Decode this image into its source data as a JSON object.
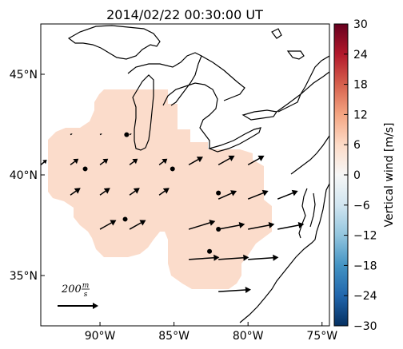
{
  "chart_data": {
    "type": "map",
    "title": "2014/02/22 00:30:00 UT",
    "xlim": [
      -94,
      -74.5
    ],
    "ylim": [
      32.5,
      47.5
    ],
    "x_ticks": [
      -90,
      -85,
      -80,
      -75
    ],
    "x_tick_labels": [
      "90°W",
      "85°W",
      "80°W",
      "75°W"
    ],
    "y_ticks": [
      35,
      40,
      45
    ],
    "y_tick_labels": [
      "35°N",
      "40°N",
      "45°N"
    ],
    "colorbar": {
      "label": "Vertical wind [m/s]",
      "min": -30,
      "max": 30,
      "colormap": "RdBu_r",
      "ticks": [
        30,
        24,
        18,
        12,
        6,
        0,
        -6,
        -12,
        -18,
        -24,
        -30
      ],
      "tick_labels": [
        "30",
        "24",
        "18",
        "12",
        "6",
        "0",
        "−6",
        "−12",
        "−18",
        "−24",
        "−30"
      ]
    },
    "coverage_color": "#fbdccb",
    "coverage_value_approx": 5,
    "scale_arrow": {
      "label": "200",
      "unit_num": "m",
      "unit_den": "s",
      "speed": 200
    },
    "station_sites": [
      {
        "lon": -88.2,
        "lat": 42.0
      },
      {
        "lon": -91.0,
        "lat": 40.3
      },
      {
        "lon": -85.1,
        "lat": 40.3
      },
      {
        "lon": -82.0,
        "lat": 39.1
      },
      {
        "lon": -88.3,
        "lat": 37.8
      },
      {
        "lon": -82.0,
        "lat": 37.3
      },
      {
        "lon": -82.6,
        "lat": 36.2
      }
    ],
    "wind_vectors": [
      {
        "lon": -92.0,
        "lat": 42.0,
        "u": 10,
        "v": 5
      },
      {
        "lon": -90.0,
        "lat": 42.0,
        "u": 10,
        "v": 5
      },
      {
        "lon": -88.0,
        "lat": 42.0,
        "u": 10,
        "v": 5
      },
      {
        "lon": -94.0,
        "lat": 40.5,
        "u": 30,
        "v": 25
      },
      {
        "lon": -92.0,
        "lat": 40.5,
        "u": 40,
        "v": 30
      },
      {
        "lon": -90.0,
        "lat": 40.5,
        "u": 40,
        "v": 30
      },
      {
        "lon": -88.0,
        "lat": 40.5,
        "u": 40,
        "v": 30
      },
      {
        "lon": -86.0,
        "lat": 40.5,
        "u": 40,
        "v": 30
      },
      {
        "lon": -84.0,
        "lat": 40.5,
        "u": 70,
        "v": 40
      },
      {
        "lon": -82.0,
        "lat": 40.5,
        "u": 80,
        "v": 45
      },
      {
        "lon": -80.0,
        "lat": 40.5,
        "u": 80,
        "v": 45
      },
      {
        "lon": -92.0,
        "lat": 39.0,
        "u": 50,
        "v": 35
      },
      {
        "lon": -90.0,
        "lat": 39.0,
        "u": 50,
        "v": 35
      },
      {
        "lon": -88.0,
        "lat": 39.0,
        "u": 50,
        "v": 35
      },
      {
        "lon": -86.0,
        "lat": 39.0,
        "u": 50,
        "v": 35
      },
      {
        "lon": -82.0,
        "lat": 38.8,
        "u": 90,
        "v": 40
      },
      {
        "lon": -80.0,
        "lat": 38.8,
        "u": 100,
        "v": 40
      },
      {
        "lon": -78.0,
        "lat": 38.8,
        "u": 100,
        "v": 40
      },
      {
        "lon": -90.0,
        "lat": 37.3,
        "u": 80,
        "v": 45
      },
      {
        "lon": -88.0,
        "lat": 37.3,
        "u": 80,
        "v": 45
      },
      {
        "lon": -84.0,
        "lat": 37.3,
        "u": 130,
        "v": 40
      },
      {
        "lon": -82.0,
        "lat": 37.3,
        "u": 130,
        "v": 25
      },
      {
        "lon": -80.0,
        "lat": 37.3,
        "u": 130,
        "v": 25
      },
      {
        "lon": -78.0,
        "lat": 37.3,
        "u": 130,
        "v": 25
      },
      {
        "lon": -84.0,
        "lat": 35.8,
        "u": 150,
        "v": 10
      },
      {
        "lon": -82.0,
        "lat": 35.8,
        "u": 150,
        "v": 10
      },
      {
        "lon": -80.0,
        "lat": 35.8,
        "u": 150,
        "v": 10
      },
      {
        "lon": -82.0,
        "lat": 34.2,
        "u": 160,
        "v": 10
      }
    ]
  }
}
